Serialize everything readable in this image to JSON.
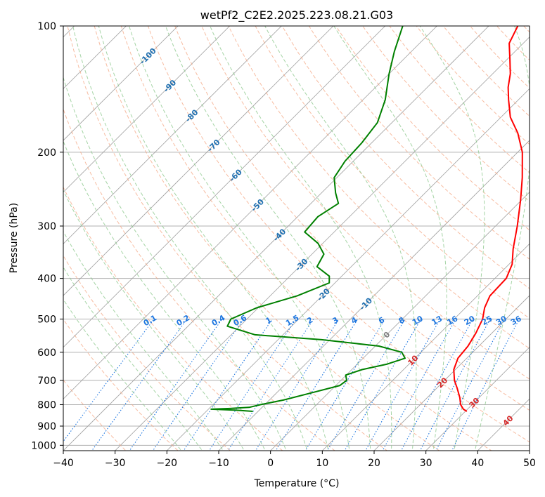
{
  "chart_data": {
    "type": "line",
    "chart_kind": "skew-t log-p",
    "title": "wetPf2_C2E2.2025.223.08.21.G03",
    "xlabel": "Temperature (°C)",
    "ylabel": "Pressure (hPa)",
    "xlim": [
      -40,
      50
    ],
    "ylim": [
      1030,
      100
    ],
    "y_scale": "log",
    "grid": true,
    "x_ticks": [
      -40,
      -30,
      -20,
      -10,
      0,
      10,
      20,
      30,
      40,
      50
    ],
    "y_ticks": [
      100,
      200,
      300,
      400,
      500,
      600,
      700,
      800,
      900,
      1000
    ],
    "colors": {
      "temperature": "#ff0000",
      "dewpoint": "#008000",
      "isotherm": "#a0a0a0",
      "dry_adiabat": "#f4a582",
      "moist_adiabat": "#8fc98f",
      "mixing_ratio": "#1f77e0",
      "isotherm_label": "#1f6fb0",
      "warm_label": "#d62728",
      "zero_label": "#808080"
    },
    "series": [
      {
        "role": "temperature",
        "color": "#ff0000",
        "points": [
          {
            "p": 830,
            "t": 30.3
          },
          {
            "p": 820,
            "t": 29.2
          },
          {
            "p": 800,
            "t": 27.8
          },
          {
            "p": 770,
            "t": 26.3
          },
          {
            "p": 730,
            "t": 23.9
          },
          {
            "p": 700,
            "t": 21.9
          },
          {
            "p": 660,
            "t": 19.7
          },
          {
            "p": 620,
            "t": 18.3
          },
          {
            "p": 580,
            "t": 17.9
          },
          {
            "p": 540,
            "t": 16.9
          },
          {
            "p": 500,
            "t": 15.5
          },
          {
            "p": 470,
            "t": 13.7
          },
          {
            "p": 440,
            "t": 12.4
          },
          {
            "p": 420,
            "t": 12.3
          },
          {
            "p": 400,
            "t": 12.2
          },
          {
            "p": 370,
            "t": 10.6
          },
          {
            "p": 340,
            "t": 7.8
          },
          {
            "p": 300,
            "t": 4.2
          },
          {
            "p": 260,
            "t": -0.2
          },
          {
            "p": 230,
            "t": -4.2
          },
          {
            "p": 200,
            "t": -9.1
          },
          {
            "p": 180,
            "t": -13.7
          },
          {
            "p": 165,
            "t": -18.2
          },
          {
            "p": 150,
            "t": -21.9
          },
          {
            "p": 140,
            "t": -24.4
          },
          {
            "p": 130,
            "t": -26.6
          },
          {
            "p": 120,
            "t": -29.5
          },
          {
            "p": 110,
            "t": -32.7
          },
          {
            "p": 100,
            "t": -34.4
          }
        ]
      },
      {
        "role": "dewpoint",
        "color": "#008000",
        "points": [
          {
            "p": 830,
            "t": -11.0
          },
          {
            "p": 825,
            "t": -14.3
          },
          {
            "p": 820,
            "t": -19.5
          },
          {
            "p": 817,
            "t": -16.0
          },
          {
            "p": 812,
            "t": -12.5
          },
          {
            "p": 800,
            "t": -10.8
          },
          {
            "p": 780,
            "t": -7.3
          },
          {
            "p": 750,
            "t": -3.3
          },
          {
            "p": 720,
            "t": 0.8
          },
          {
            "p": 700,
            "t": 1.1
          },
          {
            "p": 680,
            "t": -0.1
          },
          {
            "p": 660,
            "t": 2.0
          },
          {
            "p": 640,
            "t": 5.8
          },
          {
            "p": 620,
            "t": 8.1
          },
          {
            "p": 600,
            "t": 6.3
          },
          {
            "p": 580,
            "t": 0.7
          },
          {
            "p": 560,
            "t": -11.6
          },
          {
            "p": 545,
            "t": -25.4
          },
          {
            "p": 520,
            "t": -32.4
          },
          {
            "p": 500,
            "t": -33.1
          },
          {
            "p": 470,
            "t": -30.3
          },
          {
            "p": 440,
            "t": -24.8
          },
          {
            "p": 410,
            "t": -21.1
          },
          {
            "p": 395,
            "t": -22.4
          },
          {
            "p": 375,
            "t": -26.6
          },
          {
            "p": 350,
            "t": -27.7
          },
          {
            "p": 330,
            "t": -30.9
          },
          {
            "p": 310,
            "t": -35.7
          },
          {
            "p": 285,
            "t": -36.1
          },
          {
            "p": 265,
            "t": -34.7
          },
          {
            "p": 250,
            "t": -37.3
          },
          {
            "p": 230,
            "t": -40.5
          },
          {
            "p": 210,
            "t": -41.6
          },
          {
            "p": 190,
            "t": -41.9
          },
          {
            "p": 170,
            "t": -42.8
          },
          {
            "p": 150,
            "t": -45.7
          },
          {
            "p": 130,
            "t": -50.0
          },
          {
            "p": 115,
            "t": -53.3
          },
          {
            "p": 100,
            "t": -56.6
          }
        ]
      }
    ],
    "isotherm_labels": [
      {
        "text": "-100",
        "t": -100
      },
      {
        "text": "-90",
        "t": -90
      },
      {
        "text": "-80",
        "t": -80
      },
      {
        "text": "-70",
        "t": -70
      },
      {
        "text": "-60",
        "t": -60
      },
      {
        "text": "-50",
        "t": -50
      },
      {
        "text": "-40",
        "t": -40
      },
      {
        "text": "-30",
        "t": -30
      },
      {
        "text": "-20",
        "t": -20
      },
      {
        "text": "-10",
        "t": -10
      },
      {
        "text": "0",
        "t": 0
      },
      {
        "text": "10",
        "t": 10
      },
      {
        "text": "20",
        "t": 20
      },
      {
        "text": "30",
        "t": 30
      },
      {
        "text": "40",
        "t": 40
      }
    ],
    "mixing_ratio_labels": [
      {
        "text": "0.1",
        "w": 0.1
      },
      {
        "text": "0.2",
        "w": 0.2
      },
      {
        "text": "0.4",
        "w": 0.4
      },
      {
        "text": "0.6",
        "w": 0.6
      },
      {
        "text": "1",
        "w": 1
      },
      {
        "text": "1.5",
        "w": 1.5
      },
      {
        "text": "2",
        "w": 2
      },
      {
        "text": "3",
        "w": 3
      },
      {
        "text": "4",
        "w": 4
      },
      {
        "text": "6",
        "w": 6
      },
      {
        "text": "8",
        "w": 8
      },
      {
        "text": "10",
        "w": 10
      },
      {
        "text": "13",
        "w": 13
      },
      {
        "text": "16",
        "w": 16
      },
      {
        "text": "20",
        "w": 20
      },
      {
        "text": "25",
        "w": 25
      },
      {
        "text": "30",
        "w": 30
      },
      {
        "text": "36",
        "w": 36
      }
    ]
  }
}
